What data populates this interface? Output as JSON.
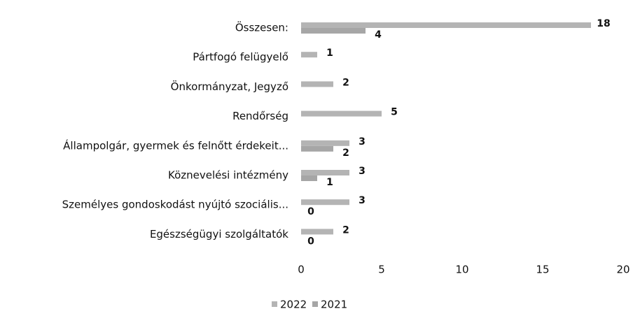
{
  "chart_data": {
    "type": "bar",
    "orientation": "horizontal",
    "categories": [
      "Összesen:",
      "Pártfogó felügyelő",
      "Önkormányzat, Jegyző",
      "Rendőrség",
      "Állampolgár, gyermek és felnőtt érdekeit...",
      "Köznevelési intézmény",
      "Személyes gondoskodást nyújtó szociális...",
      "Egészségügyi szolgáltatók"
    ],
    "series": [
      {
        "name": "2022",
        "color": "#b4b4b4",
        "values": [
          18,
          1,
          2,
          5,
          3,
          3,
          3,
          2
        ]
      },
      {
        "name": "2021",
        "color": "#a6a6a6",
        "values": [
          4,
          null,
          null,
          null,
          2,
          1,
          0,
          0
        ]
      }
    ],
    "xlim": [
      0,
      20
    ],
    "xticks": [
      0,
      5,
      10,
      15,
      20
    ],
    "legend": "bottom"
  }
}
